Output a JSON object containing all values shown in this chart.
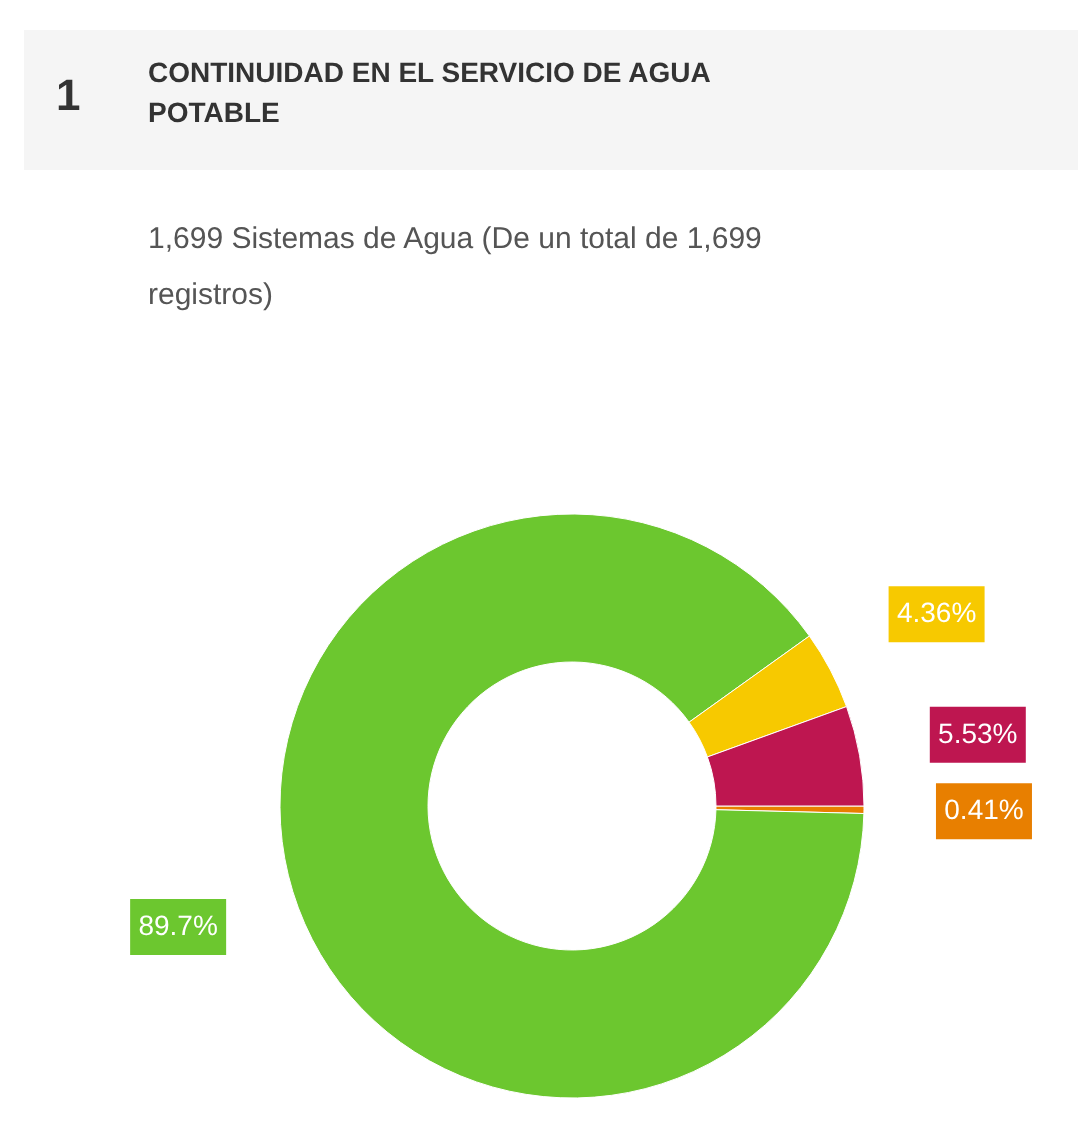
{
  "chart_data": {
    "type": "donut",
    "title": "CONTINUIDAD EN EL SERVICIO DE AGUA POTABLE",
    "subtitle": "1,699 Sistemas de Agua (De un total de 1,699 registros)",
    "annotations": [
      "1"
    ],
    "categories": [
      null,
      null,
      null,
      null
    ],
    "values": [
      0.41,
      89.7,
      4.36,
      5.53
    ],
    "colors": [
      "#e87f00",
      "#6cc72f",
      "#f7c900",
      "#be1650"
    ],
    "value_labels": [
      "0.41%",
      "89.7%",
      "4.36%",
      "5.53%"
    ]
  }
}
